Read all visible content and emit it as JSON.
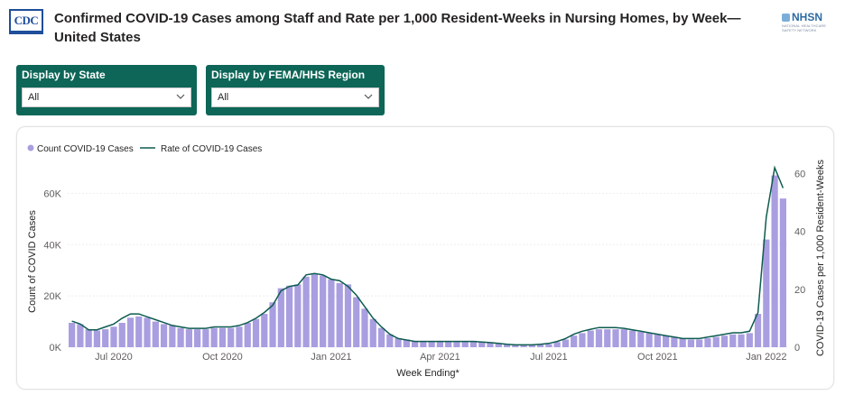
{
  "header": {
    "title": "Confirmed COVID-19 Cases among Staff and Rate per 1,000 Resident-Weeks in Nursing Homes, by Week— United States",
    "cdc_logo_text": "CDC",
    "nhsn_logo_text": "NHSN",
    "nhsn_logo_subtext": "NATIONAL HEALTHCARE SAFETY NETWORK"
  },
  "filters": [
    {
      "label": "Display by State",
      "value": "All"
    },
    {
      "label": "Display by FEMA/HHS Region",
      "value": "All"
    }
  ],
  "colors": {
    "bar": "#a99ee0",
    "line": "#0e5c4f",
    "filter_bg": "#0d6657"
  },
  "chart_data": {
    "type": "bar",
    "combo_line": true,
    "xlabel": "Week Ending*",
    "ylabel": "Count of COVID Cases",
    "y2label": "COVID-19 Cases per 1,000 Resident-Weeks",
    "ylim": [
      0,
      70000
    ],
    "y2lim": [
      0,
      62
    ],
    "yticks": [
      {
        "v": 0,
        "label": "0K"
      },
      {
        "v": 20000,
        "label": "20K"
      },
      {
        "v": 40000,
        "label": "40K"
      },
      {
        "v": 60000,
        "label": "60K"
      }
    ],
    "y2ticks": [
      0,
      20,
      40,
      60
    ],
    "xticks": [
      {
        "week": "2020-07-05",
        "label": "Jul 2020"
      },
      {
        "week": "2020-10-04",
        "label": "Oct 2020"
      },
      {
        "week": "2021-01-03",
        "label": "Jan 2021"
      },
      {
        "week": "2021-04-04",
        "label": "Apr 2021"
      },
      {
        "week": "2021-07-04",
        "label": "Jul 2021"
      },
      {
        "week": "2021-10-03",
        "label": "Oct 2021"
      },
      {
        "week": "2022-01-02",
        "label": "Jan 2022"
      }
    ],
    "grid": true,
    "legend_position": "top-left",
    "series": [
      {
        "name": "Count COVID-19 Cases",
        "type": "bar",
        "axis": "left",
        "x": [
          "2020-05-31",
          "2020-06-07",
          "2020-06-14",
          "2020-06-21",
          "2020-06-28",
          "2020-07-05",
          "2020-07-12",
          "2020-07-19",
          "2020-07-26",
          "2020-08-02",
          "2020-08-09",
          "2020-08-16",
          "2020-08-23",
          "2020-08-30",
          "2020-09-06",
          "2020-09-13",
          "2020-09-20",
          "2020-09-27",
          "2020-10-04",
          "2020-10-11",
          "2020-10-18",
          "2020-10-25",
          "2020-11-01",
          "2020-11-08",
          "2020-11-15",
          "2020-11-22",
          "2020-11-29",
          "2020-12-06",
          "2020-12-13",
          "2020-12-20",
          "2020-12-27",
          "2021-01-03",
          "2021-01-10",
          "2021-01-17",
          "2021-01-24",
          "2021-01-31",
          "2021-02-07",
          "2021-02-14",
          "2021-02-21",
          "2021-02-28",
          "2021-03-07",
          "2021-03-14",
          "2021-03-21",
          "2021-03-28",
          "2021-04-04",
          "2021-04-11",
          "2021-04-18",
          "2021-04-25",
          "2021-05-02",
          "2021-05-09",
          "2021-05-16",
          "2021-05-23",
          "2021-05-30",
          "2021-06-06",
          "2021-06-13",
          "2021-06-20",
          "2021-06-27",
          "2021-07-04",
          "2021-07-11",
          "2021-07-18",
          "2021-07-25",
          "2021-08-01",
          "2021-08-08",
          "2021-08-15",
          "2021-08-22",
          "2021-08-29",
          "2021-09-05",
          "2021-09-12",
          "2021-09-19",
          "2021-09-26",
          "2021-10-03",
          "2021-10-10",
          "2021-10-17",
          "2021-10-24",
          "2021-10-31",
          "2021-11-07",
          "2021-11-14",
          "2021-11-21",
          "2021-11-28",
          "2021-12-05",
          "2021-12-12",
          "2021-12-19",
          "2021-12-26",
          "2022-01-02",
          "2022-01-09",
          "2022-01-16"
        ],
        "values": [
          9500,
          9000,
          7000,
          6500,
          7000,
          8000,
          9500,
          11500,
          12000,
          11500,
          10000,
          9000,
          8500,
          7500,
          7000,
          7000,
          7000,
          7500,
          7500,
          7500,
          8000,
          9500,
          11000,
          13000,
          17500,
          23000,
          24000,
          24500,
          27500,
          28500,
          28000,
          26500,
          25000,
          24500,
          19500,
          15000,
          11000,
          7500,
          5000,
          3500,
          3000,
          2500,
          2500,
          2500,
          2500,
          2500,
          2500,
          2500,
          2500,
          2200,
          1800,
          1500,
          1200,
          800,
          800,
          800,
          1000,
          1200,
          2000,
          3000,
          4500,
          5500,
          6500,
          7000,
          7000,
          7000,
          7000,
          6500,
          6000,
          5500,
          5000,
          4500,
          4000,
          3500,
          3000,
          3000,
          3500,
          4000,
          4500,
          5000,
          5000,
          5500,
          13000,
          42000,
          67000,
          58000
        ]
      },
      {
        "name": "Rate of COVID-19 Cases",
        "type": "line",
        "axis": "right",
        "x": [
          "2020-05-31",
          "2020-06-07",
          "2020-06-14",
          "2020-06-21",
          "2020-06-28",
          "2020-07-05",
          "2020-07-12",
          "2020-07-19",
          "2020-07-26",
          "2020-08-02",
          "2020-08-09",
          "2020-08-16",
          "2020-08-23",
          "2020-08-30",
          "2020-09-06",
          "2020-09-13",
          "2020-09-20",
          "2020-09-27",
          "2020-10-04",
          "2020-10-11",
          "2020-10-18",
          "2020-10-25",
          "2020-11-01",
          "2020-11-08",
          "2020-11-15",
          "2020-11-22",
          "2020-11-29",
          "2020-12-06",
          "2020-12-13",
          "2020-12-20",
          "2020-12-27",
          "2021-01-03",
          "2021-01-10",
          "2021-01-17",
          "2021-01-24",
          "2021-01-31",
          "2021-02-07",
          "2021-02-14",
          "2021-02-21",
          "2021-02-28",
          "2021-03-07",
          "2021-03-14",
          "2021-03-21",
          "2021-03-28",
          "2021-04-04",
          "2021-04-11",
          "2021-04-18",
          "2021-04-25",
          "2021-05-02",
          "2021-05-09",
          "2021-05-16",
          "2021-05-23",
          "2021-05-30",
          "2021-06-06",
          "2021-06-13",
          "2021-06-20",
          "2021-06-27",
          "2021-07-04",
          "2021-07-11",
          "2021-07-18",
          "2021-07-25",
          "2021-08-01",
          "2021-08-08",
          "2021-08-15",
          "2021-08-22",
          "2021-08-29",
          "2021-09-05",
          "2021-09-12",
          "2021-09-19",
          "2021-09-26",
          "2021-10-03",
          "2021-10-10",
          "2021-10-17",
          "2021-10-24",
          "2021-10-31",
          "2021-11-07",
          "2021-11-14",
          "2021-11-21",
          "2021-11-28",
          "2021-12-05",
          "2021-12-12",
          "2021-12-19",
          "2021-12-26",
          "2022-01-02",
          "2022-01-09",
          "2022-01-16"
        ],
        "values": [
          9,
          8,
          6,
          6,
          7,
          8,
          10,
          11.5,
          11.5,
          10.5,
          9.5,
          8.5,
          7.5,
          7,
          6.5,
          6.5,
          6.5,
          7,
          7,
          7,
          7.5,
          8.5,
          10,
          12,
          14.5,
          19.5,
          21,
          21.5,
          25,
          25.5,
          25,
          23.5,
          23,
          21,
          18,
          14,
          10,
          7,
          4.5,
          3,
          2.5,
          2,
          2,
          2,
          2,
          2,
          2,
          2,
          2,
          1.8,
          1.6,
          1.3,
          1,
          0.8,
          0.8,
          0.8,
          1,
          1.3,
          2,
          3,
          4.5,
          5.5,
          6.2,
          6.8,
          6.8,
          6.8,
          6.5,
          6,
          5.5,
          5,
          4.5,
          4,
          3.5,
          3,
          3,
          3,
          3.5,
          4,
          4.5,
          5,
          5,
          5.5,
          12,
          45,
          62,
          55
        ]
      }
    ]
  }
}
